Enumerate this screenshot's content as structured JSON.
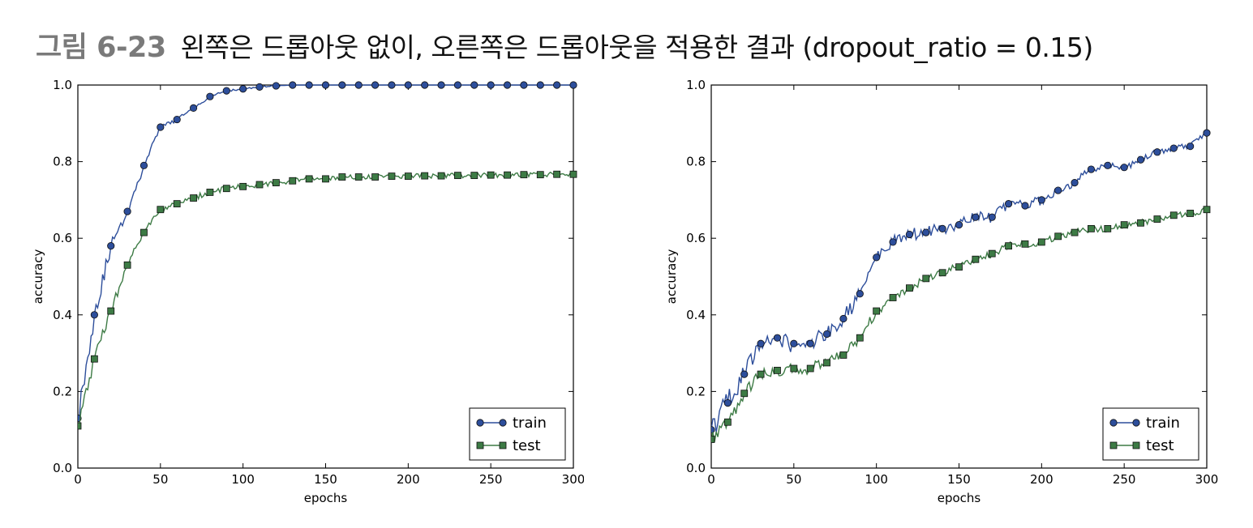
{
  "caption": {
    "figure_number": "그림 6-23",
    "text": "왼쪽은 드롭아웃 없이, 오른쪽은 드롭아웃을 적용한 결과 (dropout_ratio = 0.15)"
  },
  "colors": {
    "train": "#2d4e9b",
    "test": "#3d7b45"
  },
  "chart_data": [
    {
      "type": "line",
      "xlabel": "epochs",
      "ylabel": "accuracy",
      "xlim": [
        0,
        300
      ],
      "ylim": [
        0.0,
        1.0
      ],
      "x_ticks": [
        "0",
        "50",
        "100",
        "150",
        "200",
        "250",
        "300"
      ],
      "y_ticks": [
        "0.0",
        "0.2",
        "0.4",
        "0.6",
        "0.8",
        "1.0"
      ],
      "legend_position": "bottom-right",
      "marker_every": 10,
      "series": [
        {
          "name": "train",
          "marker": "circle",
          "x": [
            0,
            10,
            20,
            30,
            40,
            50,
            60,
            70,
            80,
            90,
            100,
            110,
            120,
            130,
            140,
            150,
            160,
            170,
            180,
            190,
            200,
            210,
            220,
            230,
            240,
            250,
            260,
            270,
            280,
            290,
            300
          ],
          "values": [
            0.13,
            0.4,
            0.58,
            0.67,
            0.79,
            0.89,
            0.91,
            0.94,
            0.97,
            0.985,
            0.99,
            0.995,
            0.998,
            1.0,
            1.0,
            1.0,
            1.0,
            1.0,
            1.0,
            1.0,
            1.0,
            1.0,
            1.0,
            1.0,
            1.0,
            1.0,
            1.0,
            1.0,
            1.0,
            1.0,
            1.0
          ]
        },
        {
          "name": "test",
          "marker": "square",
          "x": [
            0,
            10,
            20,
            30,
            40,
            50,
            60,
            70,
            80,
            90,
            100,
            110,
            120,
            130,
            140,
            150,
            160,
            170,
            180,
            190,
            200,
            210,
            220,
            230,
            240,
            250,
            260,
            270,
            280,
            290,
            300
          ],
          "values": [
            0.11,
            0.285,
            0.41,
            0.53,
            0.615,
            0.675,
            0.69,
            0.705,
            0.72,
            0.73,
            0.735,
            0.74,
            0.745,
            0.75,
            0.755,
            0.755,
            0.76,
            0.76,
            0.76,
            0.762,
            0.762,
            0.763,
            0.763,
            0.764,
            0.764,
            0.765,
            0.765,
            0.766,
            0.766,
            0.767,
            0.767
          ]
        }
      ]
    },
    {
      "type": "line",
      "xlabel": "epochs",
      "ylabel": "accuracy",
      "xlim": [
        0,
        300
      ],
      "ylim": [
        0.0,
        1.0
      ],
      "x_ticks": [
        "0",
        "50",
        "100",
        "150",
        "200",
        "250",
        "300"
      ],
      "y_ticks": [
        "0.0",
        "0.2",
        "0.4",
        "0.6",
        "0.8",
        "1.0"
      ],
      "legend_position": "bottom-right",
      "marker_every": 10,
      "series": [
        {
          "name": "train",
          "marker": "circle",
          "x": [
            0,
            10,
            20,
            30,
            40,
            50,
            60,
            70,
            80,
            90,
            100,
            110,
            120,
            130,
            140,
            150,
            160,
            170,
            180,
            190,
            200,
            210,
            220,
            230,
            240,
            250,
            260,
            270,
            280,
            290,
            300
          ],
          "values": [
            0.1,
            0.17,
            0.245,
            0.325,
            0.34,
            0.325,
            0.325,
            0.35,
            0.39,
            0.455,
            0.55,
            0.59,
            0.61,
            0.615,
            0.625,
            0.635,
            0.655,
            0.655,
            0.69,
            0.685,
            0.7,
            0.725,
            0.745,
            0.78,
            0.79,
            0.785,
            0.805,
            0.825,
            0.835,
            0.84,
            0.875
          ]
        },
        {
          "name": "test",
          "marker": "square",
          "x": [
            0,
            10,
            20,
            30,
            40,
            50,
            60,
            70,
            80,
            90,
            100,
            110,
            120,
            130,
            140,
            150,
            160,
            170,
            180,
            190,
            200,
            210,
            220,
            230,
            240,
            250,
            260,
            270,
            280,
            290,
            300
          ],
          "values": [
            0.075,
            0.12,
            0.195,
            0.245,
            0.255,
            0.26,
            0.26,
            0.275,
            0.295,
            0.34,
            0.41,
            0.445,
            0.47,
            0.495,
            0.51,
            0.525,
            0.545,
            0.56,
            0.58,
            0.585,
            0.59,
            0.605,
            0.615,
            0.625,
            0.625,
            0.635,
            0.64,
            0.65,
            0.66,
            0.665,
            0.675
          ]
        }
      ]
    }
  ]
}
